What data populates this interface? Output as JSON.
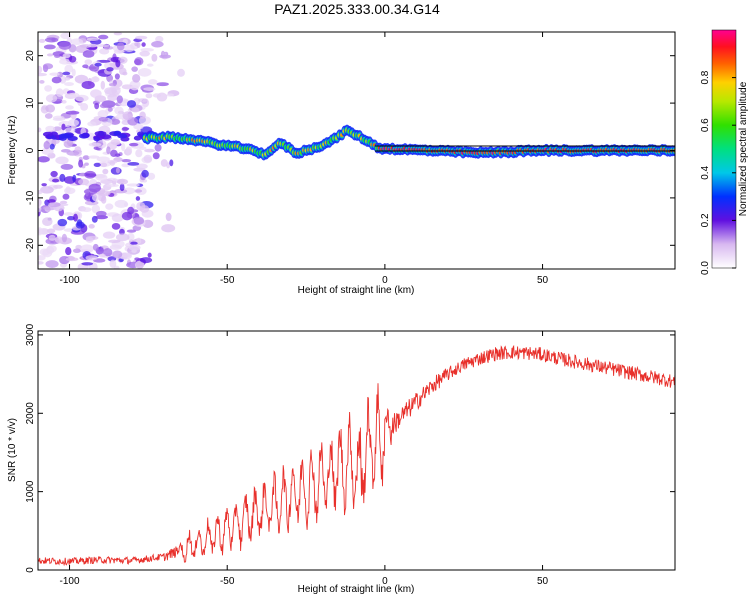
{
  "chart_data": [
    {
      "type": "heatmap",
      "title": "PAZ1.2025.333.00.34.G14",
      "xlabel": "Height of straight line (km)",
      "ylabel": "Frequency (Hz)",
      "xlim": [
        -110,
        92
      ],
      "ylim": [
        -25,
        25
      ],
      "xticks": [
        -100,
        -50,
        0,
        50
      ],
      "yticks": [
        -20,
        -10,
        0,
        10,
        20
      ],
      "colorbar": {
        "label": "Normalized spectral amplitude",
        "range": [
          0,
          1
        ],
        "ticks": [
          "0.0",
          "0.2",
          "0.4",
          "0.6",
          "0.8"
        ]
      },
      "ridge": {
        "description_points": [
          {
            "x": -75,
            "y": 2.6
          },
          {
            "x": -68,
            "y": 2.8
          },
          {
            "x": -60,
            "y": 2.2
          },
          {
            "x": -52,
            "y": 1.2
          },
          {
            "x": -45,
            "y": 0.5
          },
          {
            "x": -38,
            "y": -0.8
          },
          {
            "x": -33,
            "y": 1.6
          },
          {
            "x": -28,
            "y": -0.6
          },
          {
            "x": -22,
            "y": 0.6
          },
          {
            "x": -17,
            "y": 2.0
          },
          {
            "x": -12,
            "y": 4.2
          },
          {
            "x": -7,
            "y": 2.6
          },
          {
            "x": -2,
            "y": 0.5
          },
          {
            "x": 10,
            "y": 0.1
          },
          {
            "x": 30,
            "y": -0.5
          },
          {
            "x": 50,
            "y": 0.0
          },
          {
            "x": 70,
            "y": 0.0
          },
          {
            "x": 92,
            "y": 0.0
          }
        ]
      }
    },
    {
      "type": "line",
      "xlabel": "Height of straight line (km)",
      "ylabel": "SNR (10 * v/v)",
      "xlim": [
        -110,
        92
      ],
      "ylim": [
        0,
        3050
      ],
      "xticks": [
        -100,
        -50,
        0,
        50
      ],
      "yticks": [
        0,
        1000,
        2000,
        3000
      ],
      "color": "#e8302b",
      "series": [
        {
          "name": "SNR",
          "x": [
            -110,
            -100,
            -90,
            -80,
            -70,
            -65,
            -60,
            -55,
            -50,
            -45,
            -40,
            -35,
            -30,
            -25,
            -20,
            -15,
            -10,
            -5,
            0,
            5,
            10,
            15,
            20,
            25,
            30,
            35,
            40,
            45,
            50,
            55,
            60,
            65,
            70,
            75,
            80,
            85,
            90,
            92
          ],
          "values": [
            120,
            110,
            130,
            120,
            170,
            250,
            330,
            420,
            520,
            620,
            750,
            830,
            950,
            1050,
            1150,
            1280,
            1400,
            1550,
            1750,
            1950,
            2150,
            2350,
            2500,
            2620,
            2700,
            2760,
            2780,
            2770,
            2750,
            2700,
            2660,
            2620,
            2580,
            2540,
            2500,
            2460,
            2420,
            2400
          ]
        }
      ]
    }
  ]
}
